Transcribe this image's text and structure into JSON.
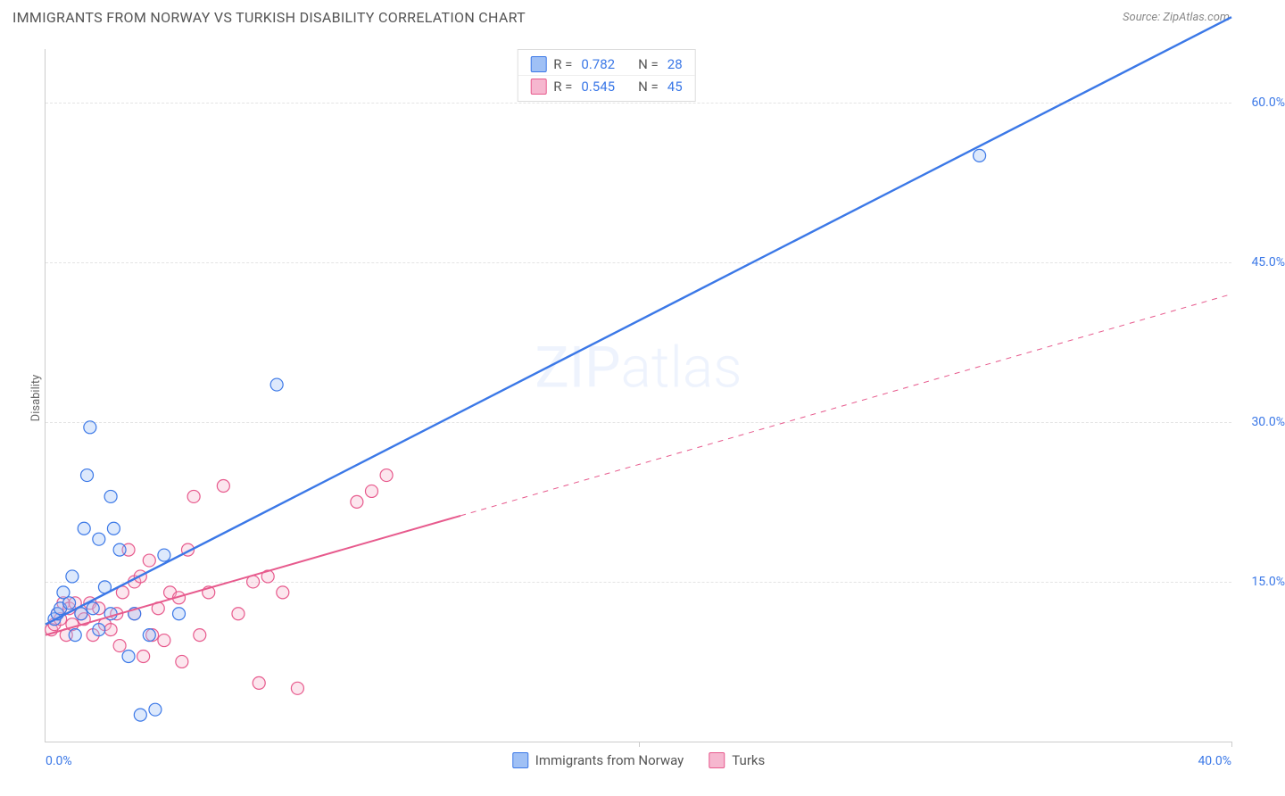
{
  "title": "IMMIGRANTS FROM NORWAY VS TURKISH DISABILITY CORRELATION CHART",
  "source_label": "Source: ZipAtlas.com",
  "watermark": "ZIPatlas",
  "ylabel": "Disability",
  "chart": {
    "type": "scatter",
    "xlim": [
      0,
      40
    ],
    "ylim": [
      0,
      65
    ],
    "x_ticks": [
      0,
      20,
      40
    ],
    "x_tick_labels": [
      "0.0%",
      "",
      "40.0%"
    ],
    "y_ticks": [
      15,
      30,
      45,
      60
    ],
    "y_tick_labels": [
      "15.0%",
      "30.0%",
      "45.0%",
      "60.0%"
    ],
    "grid_color": "#e4e4e4",
    "background_color": "#ffffff",
    "axis_color": "#cccccc",
    "tick_label_color": "#3b78e7",
    "marker_radius": 7,
    "marker_stroke_width": 1.2,
    "marker_fill_opacity": 0.35,
    "series": [
      {
        "name": "Immigrants from Norway",
        "color": "#3b78e7",
        "fill": "#9fc0f5",
        "R": "0.782",
        "N": "28",
        "points": [
          [
            0.3,
            11.5
          ],
          [
            0.4,
            12.0
          ],
          [
            0.5,
            12.5
          ],
          [
            0.6,
            14.0
          ],
          [
            0.8,
            13.0
          ],
          [
            0.9,
            15.5
          ],
          [
            1.0,
            10.0
          ],
          [
            1.2,
            12.0
          ],
          [
            1.3,
            20.0
          ],
          [
            1.4,
            25.0
          ],
          [
            1.5,
            29.5
          ],
          [
            1.6,
            12.5
          ],
          [
            1.8,
            10.5
          ],
          [
            1.8,
            19.0
          ],
          [
            2.0,
            14.5
          ],
          [
            2.2,
            12.0
          ],
          [
            2.2,
            23.0
          ],
          [
            2.3,
            20.0
          ],
          [
            2.5,
            18.0
          ],
          [
            2.8,
            8.0
          ],
          [
            3.0,
            12.0
          ],
          [
            3.2,
            2.5
          ],
          [
            3.5,
            10.0
          ],
          [
            3.7,
            3.0
          ],
          [
            4.0,
            17.5
          ],
          [
            4.5,
            12.0
          ],
          [
            7.8,
            33.5
          ],
          [
            31.5,
            55.0
          ]
        ],
        "trend": {
          "x1": 0,
          "y1": 11.0,
          "x2": 40,
          "y2": 68.0,
          "solid_until_x": 40,
          "width": 2.4
        }
      },
      {
        "name": "Turks",
        "color": "#e75a8d",
        "fill": "#f6b7cf",
        "R": "0.545",
        "N": "45",
        "points": [
          [
            0.2,
            10.5
          ],
          [
            0.3,
            11.0
          ],
          [
            0.4,
            12.0
          ],
          [
            0.5,
            11.5
          ],
          [
            0.6,
            13.0
          ],
          [
            0.7,
            10.0
          ],
          [
            0.8,
            12.5
          ],
          [
            0.9,
            11.0
          ],
          [
            1.0,
            13.0
          ],
          [
            1.2,
            12.0
          ],
          [
            1.3,
            11.5
          ],
          [
            1.5,
            13.0
          ],
          [
            1.6,
            10.0
          ],
          [
            1.8,
            12.5
          ],
          [
            2.0,
            11.0
          ],
          [
            2.2,
            10.5
          ],
          [
            2.4,
            12.0
          ],
          [
            2.5,
            9.0
          ],
          [
            2.6,
            14.0
          ],
          [
            2.8,
            18.0
          ],
          [
            3.0,
            15.0
          ],
          [
            3.0,
            12.0
          ],
          [
            3.2,
            15.5
          ],
          [
            3.3,
            8.0
          ],
          [
            3.5,
            17.0
          ],
          [
            3.6,
            10.0
          ],
          [
            3.8,
            12.5
          ],
          [
            4.0,
            9.5
          ],
          [
            4.2,
            14.0
          ],
          [
            4.5,
            13.5
          ],
          [
            4.6,
            7.5
          ],
          [
            4.8,
            18.0
          ],
          [
            5.0,
            23.0
          ],
          [
            5.2,
            10.0
          ],
          [
            5.5,
            14.0
          ],
          [
            6.0,
            24.0
          ],
          [
            6.5,
            12.0
          ],
          [
            7.0,
            15.0
          ],
          [
            7.2,
            5.5
          ],
          [
            7.5,
            15.5
          ],
          [
            8.0,
            14.0
          ],
          [
            8.5,
            5.0
          ],
          [
            10.5,
            22.5
          ],
          [
            11.0,
            23.5
          ],
          [
            11.5,
            25.0
          ]
        ],
        "trend": {
          "x1": 0,
          "y1": 10.0,
          "x2": 40,
          "y2": 42.0,
          "solid_until_x": 14,
          "width": 2.0
        }
      }
    ]
  },
  "bottom_legend": [
    {
      "label": "Immigrants from Norway",
      "fill": "#9fc0f5",
      "stroke": "#3b78e7"
    },
    {
      "label": "Turks",
      "fill": "#f6b7cf",
      "stroke": "#e75a8d"
    }
  ]
}
